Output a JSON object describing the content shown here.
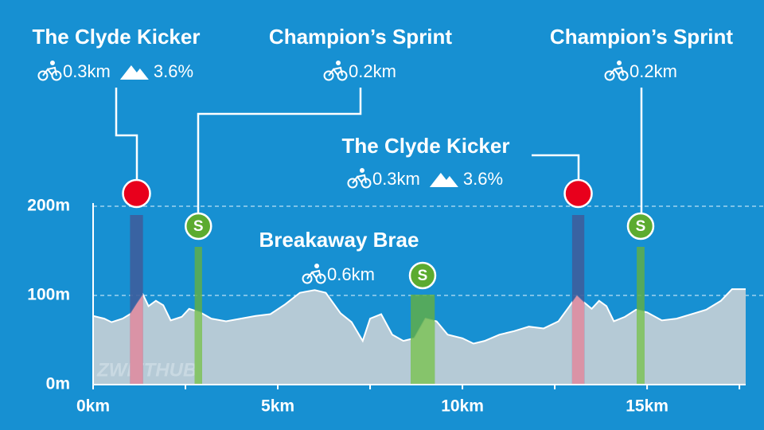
{
  "chart_data": {
    "type": "area",
    "color": "#b5cad6",
    "x": [
      0,
      0.3,
      0.5,
      0.8,
      1.0,
      1.2,
      1.35,
      1.5,
      1.7,
      1.9,
      2.1,
      2.4,
      2.6,
      2.9,
      3.2,
      3.6,
      4.0,
      4.4,
      4.8,
      5.2,
      5.6,
      6.0,
      6.3,
      6.7,
      7.0,
      7.3,
      7.5,
      7.8,
      8.1,
      8.4,
      8.7,
      9.0,
      9.3,
      9.6,
      10.0,
      10.3,
      10.6,
      11.0,
      11.4,
      11.8,
      12.2,
      12.6,
      12.9,
      13.1,
      13.3,
      13.5,
      13.7,
      13.9,
      14.1,
      14.4,
      14.7,
      15.0,
      15.4,
      15.8,
      16.2,
      16.6,
      17.0,
      17.3,
      17.67
    ],
    "values": [
      77,
      74,
      70,
      74,
      79,
      92,
      101,
      88,
      94,
      89,
      72,
      76,
      85,
      81,
      74,
      71,
      74,
      77,
      79,
      90,
      103,
      106,
      103,
      80,
      70,
      49,
      74,
      79,
      56,
      49,
      52,
      74,
      71,
      56,
      52,
      46,
      49,
      56,
      60,
      65,
      63,
      71,
      88,
      100,
      92,
      85,
      94,
      88,
      71,
      76,
      84,
      81,
      72,
      74,
      79,
      84,
      94,
      107,
      107
    ],
    "xlim": [
      0,
      17.67
    ],
    "ylim": [
      0,
      200
    ],
    "xticks": [
      {
        "value": 0,
        "label": "0km"
      },
      {
        "value": 5,
        "label": "5km"
      },
      {
        "value": 10,
        "label": "10km"
      },
      {
        "value": 15,
        "label": "15km"
      }
    ],
    "xminorticks": [
      2.5,
      7.5,
      12.5,
      17.5
    ],
    "yticks": [
      {
        "value": 0,
        "label": "0m"
      },
      {
        "value": 100,
        "label": "100m"
      },
      {
        "value": 200,
        "label": "200m"
      }
    ],
    "grid": true,
    "watermark": "ZWIFTHUB",
    "segments": [
      {
        "name": "The Clyde Kicker",
        "kind": "climb",
        "start": 1.0,
        "end": 1.35,
        "distance": "0.3km",
        "gradient": "3.6%"
      },
      {
        "name": "Champion’s Sprint",
        "kind": "sprint",
        "start": 2.75,
        "end": 2.95,
        "distance": "0.2km",
        "icon_label": "S"
      },
      {
        "name": "Breakaway Brae",
        "kind": "kom",
        "start": 8.6,
        "end": 9.25,
        "distance": "0.6km",
        "icon_label": "S"
      },
      {
        "name": "The Clyde Kicker",
        "kind": "climb",
        "start": 12.97,
        "end": 13.3,
        "distance": "0.3km",
        "gradient": "3.6%"
      },
      {
        "name": "Champion’s Sprint",
        "kind": "sprint",
        "start": 14.72,
        "end": 14.93,
        "distance": "0.2km",
        "icon_label": "S"
      }
    ]
  }
}
